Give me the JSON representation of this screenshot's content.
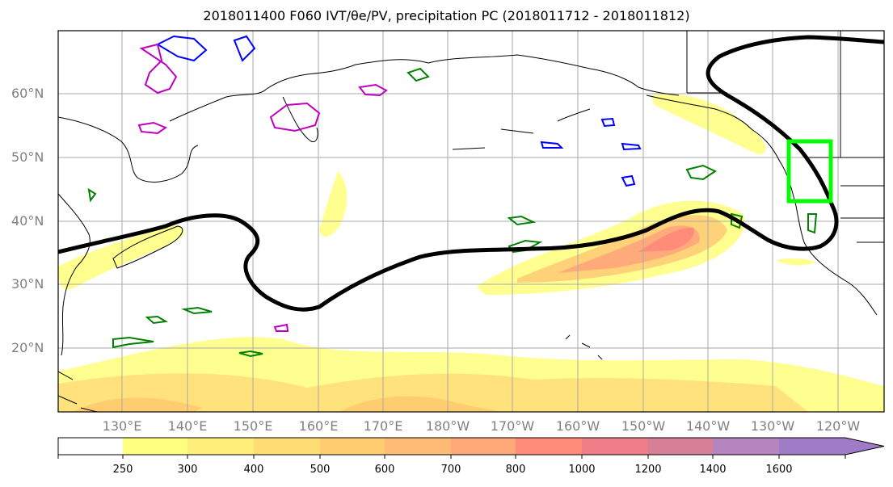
{
  "title": "2018011400 F060 IVT/θe/PV, precipitation PC (2018011712 - 2018011812)",
  "map": {
    "lat_labels": [
      "60°N",
      "50°N",
      "40°N",
      "30°N",
      "20°N"
    ],
    "lon_labels": [
      "130°E",
      "140°E",
      "150°E",
      "160°E",
      "170°E",
      "180°W",
      "170°W",
      "160°W",
      "150°W",
      "140°W",
      "130°W",
      "120°W"
    ],
    "highlight_box_color": "#00ff00",
    "theta_e_contour_color": "#000000",
    "pv_contour_colors": [
      "#008000",
      "#0000ff",
      "#c000c0"
    ]
  },
  "colorbar": {
    "ticks": [
      "250",
      "300",
      "400",
      "500",
      "600",
      "700",
      "800",
      "1000",
      "1200",
      "1400",
      "1600"
    ],
    "colors": [
      "#ffffff",
      "#ffff80",
      "#ffee7a",
      "#ffdd75",
      "#ffcc70",
      "#ffbb75",
      "#ffa878",
      "#ff8c78",
      "#ee7f88",
      "#d87f98",
      "#b585c0",
      "#a07bc8"
    ]
  }
}
